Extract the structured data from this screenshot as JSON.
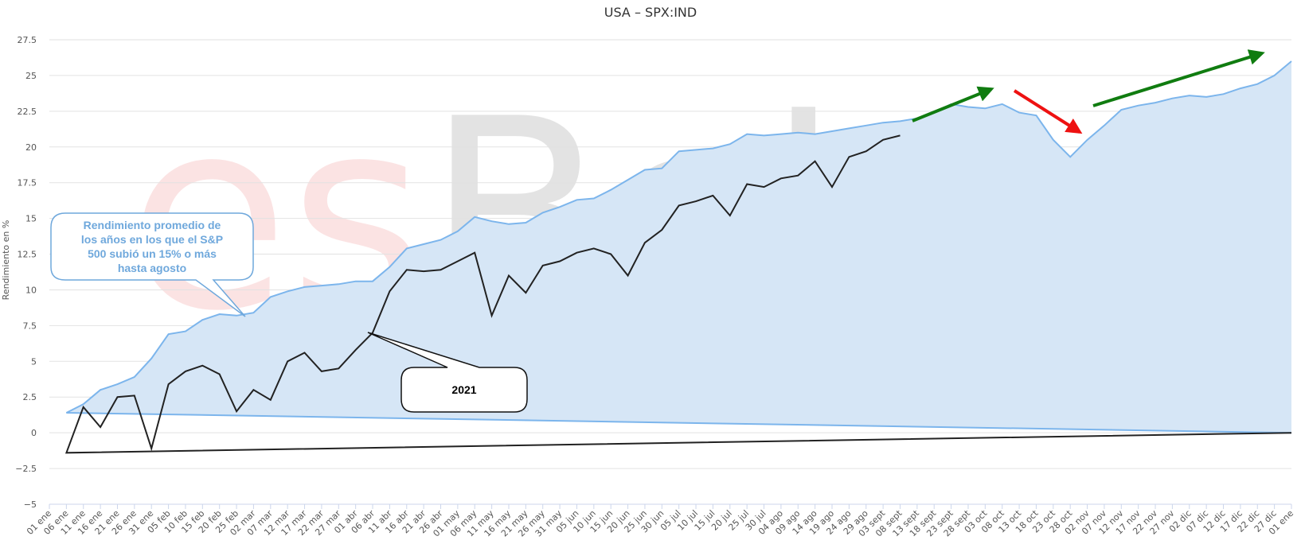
{
  "chart_data": {
    "type": "line",
    "title": "USA – SPX:IND",
    "watermark": "esBolsa",
    "ylabel": "Rendimiento en %",
    "ylim": [
      -5,
      27.5
    ],
    "yticks": [
      -5,
      -2.5,
      0,
      2.5,
      5,
      7.5,
      10,
      12.5,
      15,
      17.5,
      20,
      22.5,
      25,
      27.5
    ],
    "ytick_labels": [
      "−5",
      "−2.5",
      "0",
      "2.5",
      "5",
      "7.5",
      "10",
      "12.5",
      "15",
      "17.5",
      "20",
      "22.5",
      "25",
      "27.5"
    ],
    "x_labels": [
      "01 ene",
      "06 ene",
      "11 ene",
      "16 ene",
      "21 ene",
      "26 ene",
      "31 ene",
      "05 feb",
      "10 feb",
      "15 feb",
      "20 feb",
      "25 feb",
      "02 mar",
      "07 mar",
      "12 mar",
      "17 mar",
      "22 mar",
      "27 mar",
      "01 abr",
      "06 abr",
      "11 abr",
      "16 abr",
      "21 abr",
      "26 abr",
      "01 may",
      "06 may",
      "11 may",
      "16 may",
      "21 may",
      "26 may",
      "31 may",
      "05 jun",
      "10 jun",
      "15 jun",
      "20 jun",
      "25 jun",
      "30 jun",
      "05 jul",
      "10 jul",
      "15 jul",
      "20 jul",
      "25 jul",
      "30 jul",
      "04 ago",
      "09 ago",
      "14 ago",
      "19 ago",
      "24 ago",
      "29 ago",
      "03 sept",
      "08 sept",
      "13 sept",
      "18 sept",
      "23 sept",
      "28 sept",
      "03 oct",
      "08 oct",
      "13 oct",
      "18 oct",
      "23 oct",
      "28 oct",
      "02 nov",
      "07 nov",
      "12 nov",
      "17 nov",
      "22 nov",
      "27 nov",
      "02 dic",
      "07 dic",
      "12 dic",
      "17 dic",
      "22 dic",
      "27 dic",
      "01 ene"
    ],
    "grid": true,
    "series": [
      {
        "name": "Rendimiento promedio",
        "type": "area",
        "color": "#7cb5ec",
        "fill": "#d6e6f6",
        "x": [
          "01 ene",
          "06 ene",
          "11 ene",
          "16 ene",
          "21 ene",
          "26 ene",
          "31 ene",
          "05 feb",
          "10 feb",
          "15 feb",
          "20 feb",
          "25 feb",
          "02 mar",
          "07 mar",
          "12 mar",
          "17 mar",
          "22 mar",
          "27 mar",
          "01 abr",
          "06 abr",
          "11 abr",
          "16 abr",
          "21 abr",
          "26 abr",
          "01 may",
          "06 may",
          "11 may",
          "16 may",
          "21 may",
          "26 may",
          "31 may",
          "05 jun",
          "10 jun",
          "15 jun",
          "20 jun",
          "25 jun",
          "30 jun",
          "05 jul",
          "10 jul",
          "15 jul",
          "20 jul",
          "25 jul",
          "30 jul",
          "04 ago",
          "09 ago",
          "14 ago",
          "19 ago",
          "24 ago",
          "29 ago",
          "03 sept",
          "08 sept",
          "13 sept",
          "18 sept",
          "23 sept",
          "28 sept",
          "03 oct",
          "08 oct",
          "13 oct",
          "18 oct",
          "23 oct",
          "28 oct",
          "02 nov",
          "07 nov",
          "12 nov",
          "17 nov",
          "22 nov",
          "27 nov",
          "02 dic",
          "07 dic",
          "12 dic",
          "17 dic",
          "22 dic",
          "27 dic",
          "01 ene"
        ],
        "values": [
          0,
          1.4,
          2.0,
          3.0,
          3.4,
          3.9,
          5.2,
          6.9,
          7.1,
          7.9,
          8.3,
          8.2,
          8.4,
          9.5,
          9.9,
          10.2,
          10.3,
          10.4,
          10.6,
          10.6,
          11.6,
          12.9,
          13.2,
          13.5,
          14.1,
          15.1,
          14.8,
          14.6,
          14.7,
          15.4,
          15.8,
          16.3,
          16.4,
          17.0,
          17.7,
          18.4,
          18.5,
          19.7,
          19.8,
          19.9,
          20.2,
          20.9,
          20.8,
          20.9,
          21.0,
          20.9,
          21.1,
          21.3,
          21.5,
          21.7,
          21.8,
          22.0,
          22.4,
          23.0,
          22.8,
          22.7,
          23.0,
          22.4,
          22.2,
          20.5,
          19.3,
          20.5,
          21.5,
          22.6,
          22.9,
          23.1,
          23.4,
          23.6,
          23.5,
          23.7,
          24.1,
          24.4,
          25.0,
          26.0
        ]
      },
      {
        "name": "2021",
        "type": "line",
        "color": "#222222",
        "x": [
          "01 ene",
          "06 ene",
          "11 ene",
          "16 ene",
          "21 ene",
          "26 ene",
          "31 ene",
          "05 feb",
          "10 feb",
          "15 feb",
          "20 feb",
          "25 feb",
          "02 mar",
          "07 mar",
          "12 mar",
          "17 mar",
          "22 mar",
          "27 mar",
          "01 abr",
          "06 abr",
          "11 abr",
          "16 abr",
          "21 abr",
          "26 abr",
          "01 may",
          "06 may",
          "11 may",
          "16 may",
          "21 may",
          "26 may",
          "31 may",
          "05 jun",
          "10 jun",
          "15 jun",
          "20 jun",
          "25 jun",
          "30 jun",
          "05 jul",
          "10 jul",
          "15 jul",
          "20 jul",
          "25 jul",
          "30 jul",
          "04 ago",
          "09 ago",
          "14 ago",
          "19 ago",
          "24 ago",
          "29 ago",
          "03 sept",
          "08 sept"
        ],
        "values": [
          0,
          -1.4,
          1.8,
          0.4,
          2.5,
          2.6,
          -1.1,
          3.4,
          4.3,
          4.7,
          4.1,
          1.5,
          3.0,
          2.3,
          5.0,
          5.6,
          4.3,
          4.5,
          5.8,
          7.0,
          9.9,
          11.4,
          11.3,
          11.4,
          12.0,
          12.6,
          8.2,
          11.0,
          9.8,
          11.7,
          12.0,
          12.6,
          12.9,
          12.5,
          11.0,
          13.3,
          14.2,
          15.9,
          16.2,
          16.6,
          15.2,
          17.4,
          17.2,
          17.8,
          18.0,
          19.0,
          17.2,
          19.3,
          19.7,
          20.5,
          20.8
        ]
      }
    ],
    "annotations": [
      {
        "text": "Rendimiento promedio de los años en los que el S&P 500 subió un 15% o más hasta agosto",
        "lines": [
          "Rendimiento promedio de",
          "los años en los que el S&P",
          "500 subió un 15% o más",
          "hasta agosto"
        ],
        "color": "#6fa8dc"
      },
      {
        "text": "2021",
        "color": "#000000"
      }
    ],
    "arrows": [
      {
        "color": "#107c10",
        "from": [
          "13 sept",
          21.9
        ],
        "to": [
          "03 oct",
          24.3
        ]
      },
      {
        "color": "#ee1111",
        "from": [
          "13 oct",
          24.2
        ],
        "to": [
          "28 oct",
          21.1
        ]
      },
      {
        "color": "#107c10",
        "from": [
          "07 nov",
          23.0
        ],
        "to": [
          "01 ene",
          26.7
        ]
      }
    ]
  }
}
